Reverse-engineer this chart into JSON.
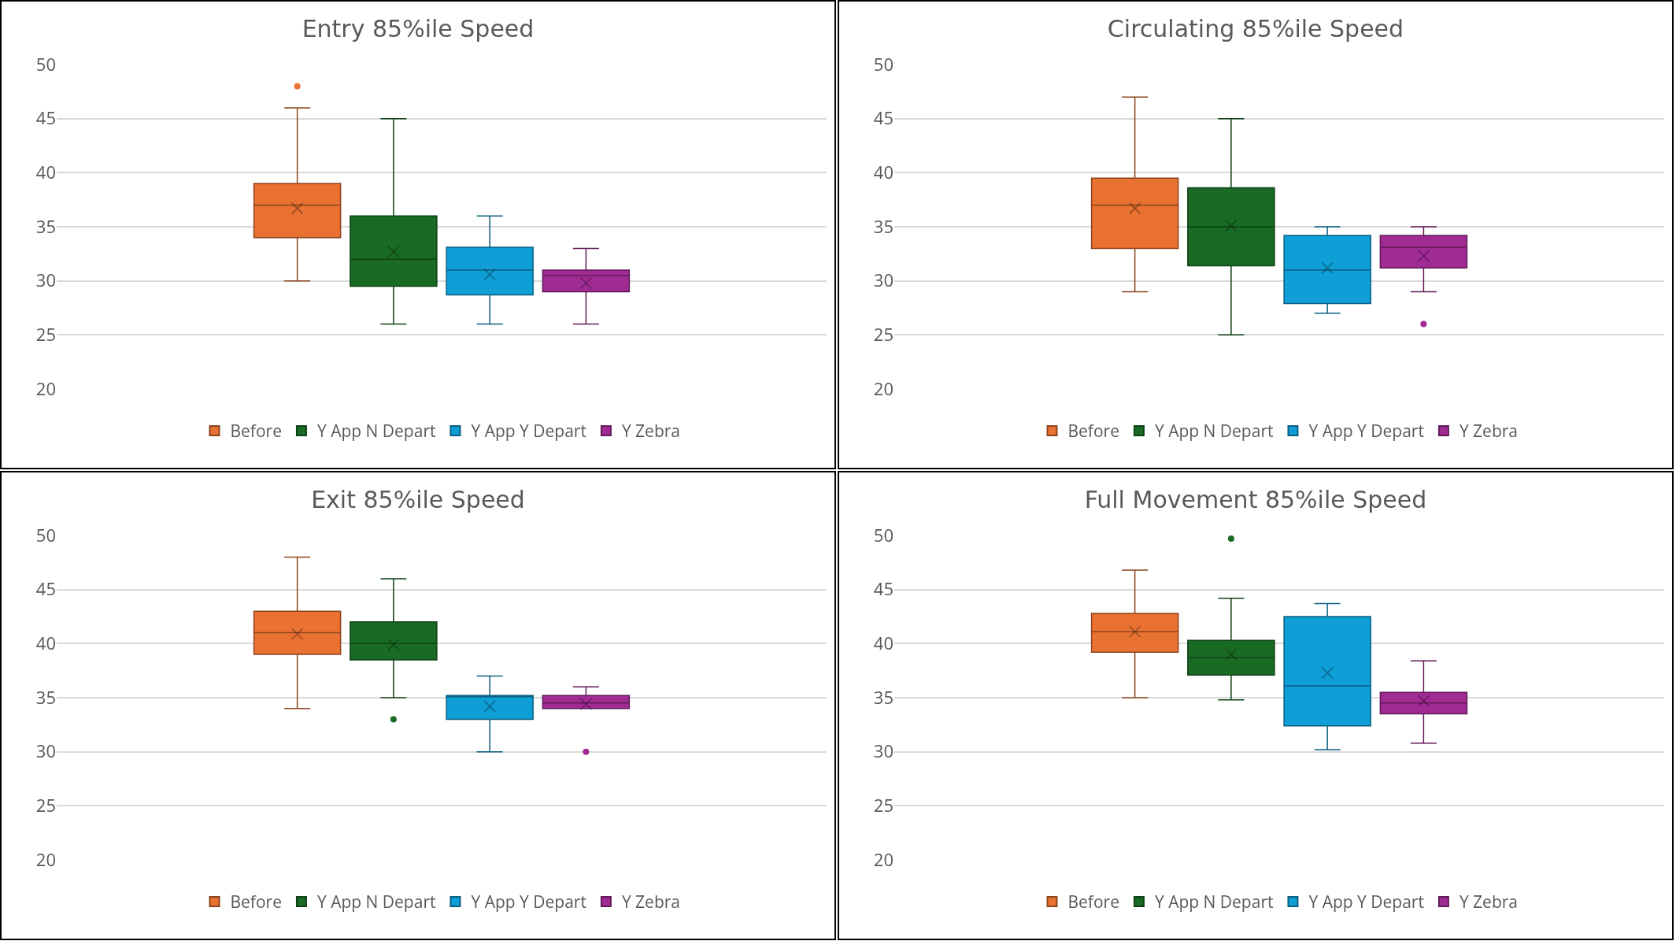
{
  "chart_data": [
    {
      "type": "box",
      "title": "Entry 85%ile Speed",
      "categories": [
        null
      ],
      "ylim": [
        20,
        50
      ],
      "yticks": [
        20,
        25,
        30,
        35,
        40,
        45,
        50
      ],
      "grid": "y",
      "legend": "bottom",
      "tick_labels": "y",
      "series": [
        {
          "name": "Before",
          "color": "#e97132",
          "boxes": [
            {
              "low": 30,
              "q1": 34,
              "median": 37,
              "q3": 39,
              "high": 46,
              "mean": 36.7,
              "outliers": [
                48
              ]
            }
          ]
        },
        {
          "name": "Y App N Depart",
          "color": "#196b24",
          "boxes": [
            {
              "low": 26,
              "q1": 29.5,
              "median": 32,
              "q3": 36,
              "high": 45,
              "mean": 32.7
            }
          ]
        },
        {
          "name": "Y App Y Depart",
          "color": "#0f9ed5",
          "boxes": [
            {
              "low": 26,
              "q1": 28.7,
              "median": 31,
              "q3": 33.1,
              "high": 36,
              "mean": 30.6
            }
          ]
        },
        {
          "name": "Y Zebra",
          "color": "#a02b93",
          "boxes": [
            {
              "low": 26,
              "q1": 29,
              "median": 30.5,
              "q3": 31,
              "high": 33,
              "mean": 29.8
            }
          ]
        }
      ]
    },
    {
      "type": "box",
      "title": "Circulating 85%ile Speed",
      "categories": [
        null
      ],
      "ylim": [
        20,
        50
      ],
      "yticks": [
        20,
        25,
        30,
        35,
        40,
        45,
        50
      ],
      "grid": "y",
      "legend": "bottom",
      "tick_labels": "y",
      "series": [
        {
          "name": "Before",
          "color": "#e97132",
          "boxes": [
            {
              "low": 29,
              "q1": 33,
              "median": 37,
              "q3": 39.5,
              "high": 47,
              "mean": 36.7
            }
          ]
        },
        {
          "name": "Y App N Depart",
          "color": "#196b24",
          "boxes": [
            {
              "low": 25,
              "q1": 31.4,
              "median": 35,
              "q3": 38.6,
              "high": 45,
              "mean": 35.1
            }
          ]
        },
        {
          "name": "Y App Y Depart",
          "color": "#0f9ed5",
          "boxes": [
            {
              "low": 27,
              "q1": 27.9,
              "median": 31,
              "q3": 34.2,
              "high": 35,
              "mean": 31.2
            }
          ]
        },
        {
          "name": "Y Zebra",
          "color": "#a02b93",
          "boxes": [
            {
              "low": 29,
              "q1": 31.2,
              "median": 33.1,
              "q3": 34.2,
              "high": 35,
              "mean": 32.3,
              "outliers": [
                26
              ]
            }
          ]
        }
      ]
    },
    {
      "type": "box",
      "title": "Exit 85%ile Speed",
      "categories": [
        null
      ],
      "ylim": [
        20,
        50
      ],
      "yticks": [
        20,
        25,
        30,
        35,
        40,
        45,
        50
      ],
      "grid": "y",
      "legend": "bottom",
      "tick_labels": "y",
      "series": [
        {
          "name": "Before",
          "color": "#e97132",
          "boxes": [
            {
              "low": 34,
              "q1": 39,
              "median": 41,
              "q3": 43,
              "high": 48,
              "mean": 40.9
            }
          ]
        },
        {
          "name": "Y App N Depart",
          "color": "#196b24",
          "boxes": [
            {
              "low": 35,
              "q1": 38.5,
              "median": 40,
              "q3": 42,
              "high": 46,
              "mean": 39.9,
              "outliers": [
                33
              ]
            }
          ]
        },
        {
          "name": "Y App Y Depart",
          "color": "#0f9ed5",
          "boxes": [
            {
              "low": 30,
              "q1": 33,
              "median": 35.1,
              "q3": 35.2,
              "high": 37,
              "mean": 34.2
            }
          ]
        },
        {
          "name": "Y Zebra",
          "color": "#a02b93",
          "boxes": [
            {
              "low": 34,
              "q1": 34,
              "median": 34.5,
              "q3": 35.2,
              "high": 36,
              "mean": 34.4,
              "outliers": [
                30
              ]
            }
          ]
        }
      ]
    },
    {
      "type": "box",
      "title": "Full Movement 85%ile Speed",
      "categories": [
        null
      ],
      "ylim": [
        20,
        50
      ],
      "yticks": [
        20,
        25,
        30,
        35,
        40,
        45,
        50
      ],
      "grid": "y",
      "legend": "bottom",
      "tick_labels": "y",
      "series": [
        {
          "name": "Before",
          "color": "#e97132",
          "boxes": [
            {
              "low": 35,
              "q1": 39.2,
              "median": 41.1,
              "q3": 42.8,
              "high": 46.8,
              "mean": 41.1
            }
          ]
        },
        {
          "name": "Y App N Depart",
          "color": "#196b24",
          "boxes": [
            {
              "low": 34.8,
              "q1": 37.1,
              "median": 38.7,
              "q3": 40.3,
              "high": 44.2,
              "mean": 39,
              "outliers": [
                49.7
              ]
            }
          ]
        },
        {
          "name": "Y App Y Depart",
          "color": "#0f9ed5",
          "boxes": [
            {
              "low": 30.2,
              "q1": 32.4,
              "median": 36.1,
              "q3": 42.5,
              "high": 43.7,
              "mean": 37.3
            }
          ]
        },
        {
          "name": "Y Zebra",
          "color": "#a02b93",
          "boxes": [
            {
              "low": 30.8,
              "q1": 33.5,
              "median": 34.5,
              "q3": 35.5,
              "high": 38.4,
              "mean": 34.7
            }
          ]
        }
      ]
    }
  ]
}
